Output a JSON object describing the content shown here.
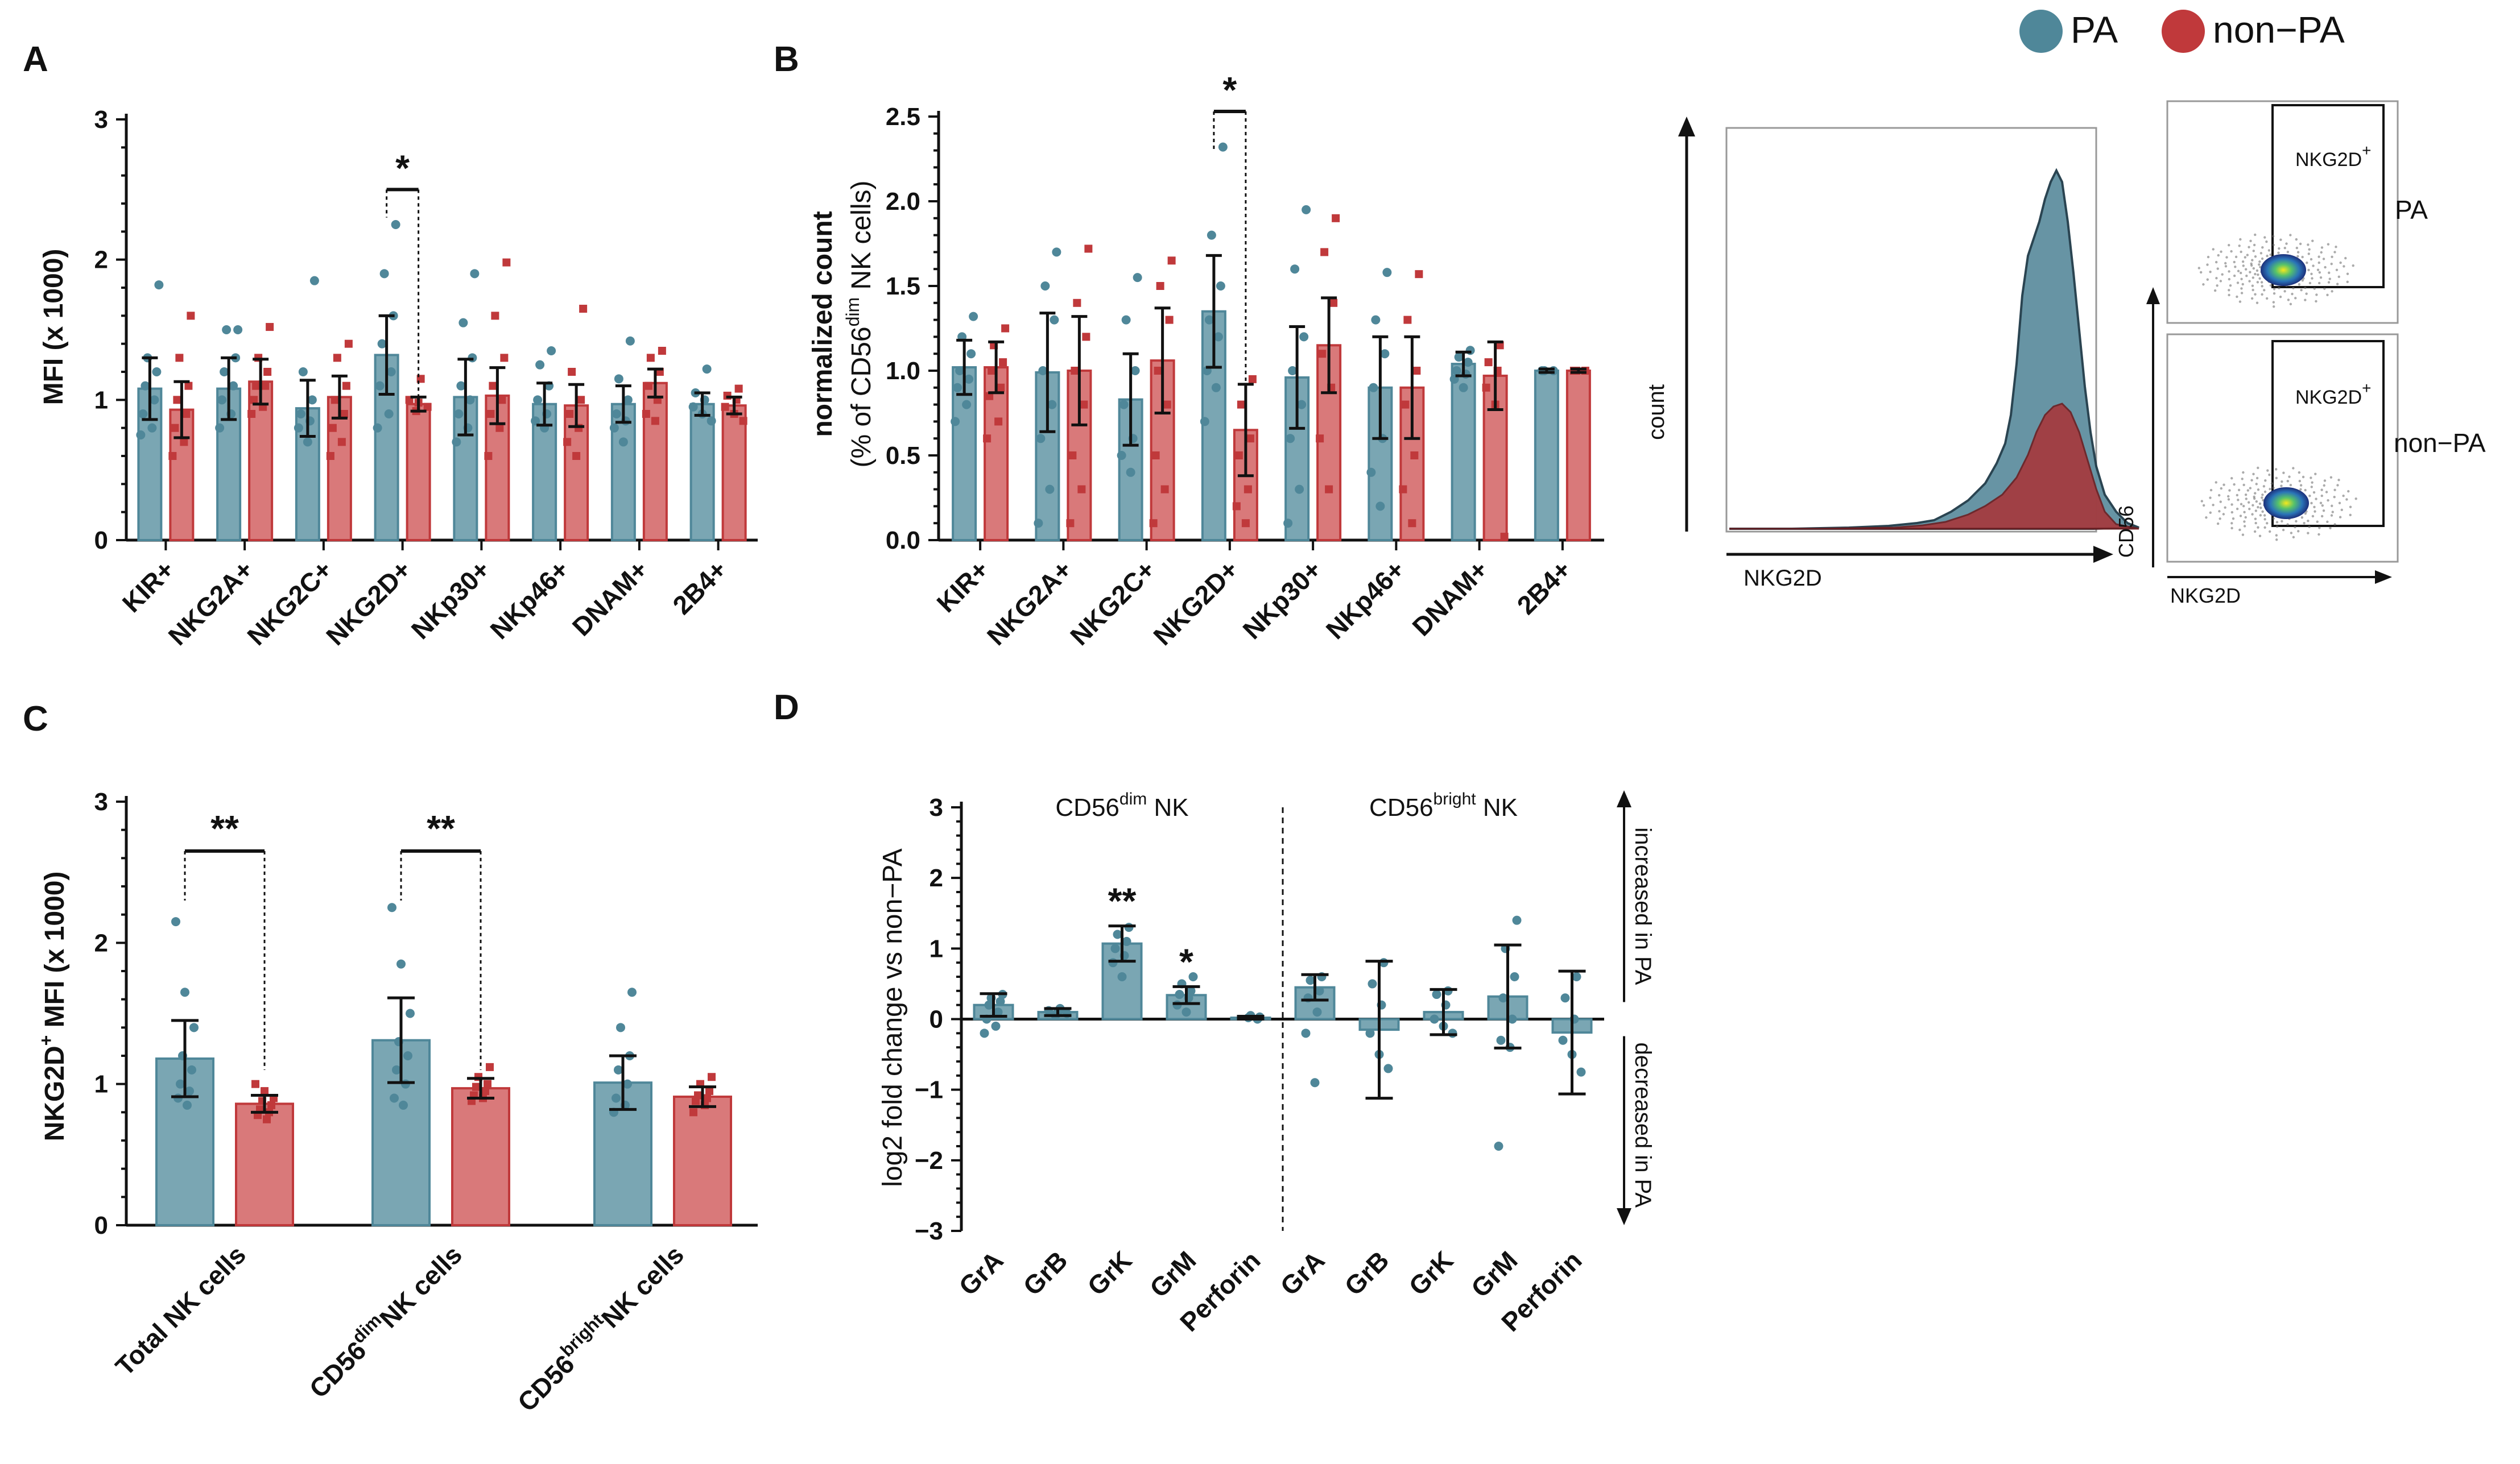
{
  "colors": {
    "pa": "#4f8799",
    "pa_fill": "#7aa6b3",
    "non_pa": "#c0393b",
    "non_pa_fill": "#d9797a"
  },
  "legend": {
    "pa": "PA",
    "non_pa": "non−PA"
  },
  "chart_data": [
    {
      "panel": "A",
      "type": "bar",
      "ylabel": "MFI (x 1000)",
      "ylim": [
        0,
        3
      ],
      "yticks": [
        "0",
        "1",
        "2",
        "3"
      ],
      "categories": [
        "KIR+",
        "NKG2A+",
        "NKG2C+",
        "NKG2D+",
        "NKp30+",
        "NKp46+",
        "DNAM+",
        "2B4+"
      ],
      "series": [
        {
          "name": "PA",
          "values": [
            1.08,
            1.08,
            0.94,
            1.32,
            1.02,
            0.97,
            0.97,
            0.97
          ],
          "err": [
            0.22,
            0.22,
            0.2,
            0.28,
            0.27,
            0.15,
            0.13,
            0.08
          ]
        },
        {
          "name": "non-PA",
          "values": [
            0.93,
            1.13,
            1.02,
            0.97,
            1.03,
            0.96,
            1.12,
            0.96
          ],
          "err": [
            0.2,
            0.16,
            0.15,
            0.05,
            0.2,
            0.15,
            0.1,
            0.06
          ]
        }
      ],
      "points": [
        [
          [
            1.82,
            1.3,
            1.2,
            1.1,
            1.0,
            0.9,
            0.8,
            0.75
          ],
          [
            1.6,
            1.3,
            1.1,
            1.0,
            0.9,
            0.8,
            0.7,
            0.6
          ]
        ],
        [
          [
            1.5,
            1.5,
            1.3,
            1.2,
            1.1,
            1.0,
            0.9,
            0.8
          ],
          [
            1.52,
            1.3,
            1.2,
            1.1,
            1.1,
            1.0,
            0.95,
            0.9
          ]
        ],
        [
          [
            1.85,
            1.2,
            1.0,
            0.9,
            0.85,
            0.8,
            0.7
          ],
          [
            1.4,
            1.3,
            1.1,
            1.0,
            0.9,
            0.8,
            0.7,
            0.6
          ]
        ],
        [
          [
            2.25,
            1.9,
            1.6,
            1.4,
            1.2,
            1.1,
            0.9,
            0.8
          ],
          [
            1.15,
            1.0,
            0.98,
            0.95,
            0.92
          ]
        ],
        [
          [
            1.9,
            1.55,
            1.3,
            1.1,
            1.0,
            0.9,
            0.8,
            0.7
          ],
          [
            1.98,
            1.6,
            1.3,
            1.1,
            1.0,
            0.9,
            0.8,
            0.6
          ]
        ],
        [
          [
            1.35,
            1.25,
            1.1,
            1.0,
            0.9,
            0.85,
            0.8
          ],
          [
            1.65,
            1.2,
            1.0,
            0.9,
            0.8,
            0.7,
            0.6
          ]
        ],
        [
          [
            1.42,
            1.15,
            1.0,
            0.9,
            0.85,
            0.8,
            0.7
          ],
          [
            1.35,
            1.3,
            1.2,
            1.1,
            1.0,
            0.9,
            0.85
          ]
        ],
        [
          [
            1.22,
            1.05,
            1.0,
            0.95,
            0.9,
            0.85
          ],
          [
            1.08,
            1.03,
            1.0,
            0.95,
            0.9,
            0.85
          ]
        ]
      ],
      "sig": {
        "label": "*",
        "category": "NKG2D+"
      }
    },
    {
      "panel": "B",
      "type": "bar",
      "ylabel_line1": "normalized count",
      "ylabel_line2_pre": "(% of CD56",
      "ylabel_line2_sup": "dim",
      "ylabel_line2_post": " NK cells)",
      "ylim": [
        0,
        2.5
      ],
      "yticks": [
        "0.0",
        "0.5",
        "1.0",
        "1.5",
        "2.0",
        "2.5"
      ],
      "categories": [
        "KIR+",
        "NKG2A+",
        "NKG2C+",
        "NKG2D+",
        "NKp30+",
        "NKp46+",
        "DNAM+",
        "2B4+"
      ],
      "series": [
        {
          "name": "PA",
          "values": [
            1.02,
            0.99,
            0.83,
            1.35,
            0.96,
            0.9,
            1.04,
            1.0
          ],
          "err": [
            0.16,
            0.35,
            0.27,
            0.33,
            0.3,
            0.3,
            0.07,
            0.01
          ]
        },
        {
          "name": "non-PA",
          "values": [
            1.02,
            1.0,
            1.06,
            0.65,
            1.15,
            0.9,
            0.97,
            1.0
          ],
          "err": [
            0.15,
            0.32,
            0.31,
            0.27,
            0.28,
            0.3,
            0.2,
            0.01
          ]
        }
      ],
      "points": [
        [
          [
            1.32,
            1.2,
            1.1,
            1.0,
            0.95,
            0.9,
            0.8,
            0.7
          ],
          [
            1.25,
            1.15,
            1.05,
            1.0,
            0.9,
            0.85,
            0.7,
            0.6
          ]
        ],
        [
          [
            1.7,
            1.5,
            1.3,
            1.0,
            0.8,
            0.6,
            0.3,
            0.1
          ],
          [
            1.72,
            1.4,
            1.2,
            1.0,
            0.8,
            0.5,
            0.3,
            0.1
          ]
        ],
        [
          [
            1.55,
            1.3,
            1.0,
            0.8,
            0.6,
            0.5,
            0.4
          ],
          [
            1.65,
            1.5,
            1.3,
            1.0,
            0.8,
            0.5,
            0.3,
            0.1
          ]
        ],
        [
          [
            2.32,
            1.8,
            1.5,
            1.3,
            1.2,
            1.0,
            0.9,
            0.7
          ],
          [
            0.95,
            0.8,
            0.6,
            0.5,
            0.3,
            0.2,
            0.1
          ]
        ],
        [
          [
            1.95,
            1.6,
            1.2,
            1.0,
            0.8,
            0.6,
            0.3,
            0.1
          ],
          [
            1.9,
            1.7,
            1.4,
            1.1,
            0.9,
            0.6,
            0.3
          ]
        ],
        [
          [
            1.58,
            1.3,
            1.1,
            0.9,
            0.6,
            0.4,
            0.2
          ],
          [
            1.57,
            1.3,
            1.0,
            0.8,
            0.5,
            0.3,
            0.1
          ]
        ],
        [
          [
            1.12,
            1.08,
            1.05,
            1.0,
            0.98,
            0.95,
            0.9
          ],
          [
            1.15,
            1.05,
            1.0,
            0.9,
            0.8,
            0.02
          ]
        ],
        [
          [
            1.0,
            1.0,
            1.0
          ],
          [
            1.0,
            1.0,
            1.0
          ]
        ]
      ],
      "sig": {
        "label": "*",
        "category": "NKG2D+"
      }
    },
    {
      "panel": "C",
      "type": "bar",
      "ylabel_pre": "NKG2D",
      "ylabel_sup": "+",
      "ylabel_post": " MFI (x 1000)",
      "ylim": [
        0,
        3
      ],
      "yticks": [
        "0",
        "1",
        "2",
        "3"
      ],
      "categories": [
        {
          "pre": "Total NK cells",
          "sup": "",
          "post": ""
        },
        {
          "pre": "CD56",
          "sup": "dim",
          "post": "NK cells"
        },
        {
          "pre": "CD56",
          "sup": "bright",
          "post": "NK cells"
        }
      ],
      "series": [
        {
          "name": "PA",
          "values": [
            1.18,
            1.31,
            1.01
          ],
          "err": [
            0.27,
            0.3,
            0.19
          ]
        },
        {
          "name": "non-PA",
          "values": [
            0.86,
            0.97,
            0.91
          ],
          "err": [
            0.06,
            0.07,
            0.07
          ]
        }
      ],
      "points": [
        [
          [
            2.15,
            1.65,
            1.4,
            1.2,
            1.1,
            1.0,
            0.95,
            0.9,
            0.85
          ],
          [
            1.0,
            0.95,
            0.9,
            0.88,
            0.85,
            0.82,
            0.8,
            0.78,
            0.75
          ]
        ],
        [
          [
            2.25,
            1.85,
            1.5,
            1.3,
            1.2,
            1.1,
            1.0,
            0.9,
            0.85
          ],
          [
            1.12,
            1.05,
            1.0,
            0.98,
            0.95,
            0.92,
            0.9,
            0.88
          ]
        ],
        [
          [
            1.65,
            1.4,
            1.2,
            1.1,
            1.0,
            0.9,
            0.85,
            0.8
          ],
          [
            1.05,
            1.0,
            0.95,
            0.92,
            0.9,
            0.88,
            0.85,
            0.8
          ]
        ]
      ],
      "sig": [
        {
          "label": "**",
          "group": 0
        },
        {
          "label": "**",
          "group": 1
        }
      ]
    },
    {
      "panel": "D",
      "type": "bar",
      "ylabel": "log2 fold change vs non−PA",
      "ylim": [
        -3,
        3
      ],
      "yticks": [
        "−3",
        "−2",
        "−1",
        "0",
        "1",
        "2",
        "3"
      ],
      "groups": [
        {
          "pre": "CD56",
          "sup": "dim",
          "post": " NK"
        },
        {
          "pre": "CD56",
          "sup": "bright",
          "post": " NK"
        }
      ],
      "categories": [
        "GrA",
        "GrB",
        "GrK",
        "GrM",
        "Perforin",
        "GrA",
        "GrB",
        "GrK",
        "GrM",
        "Perforin"
      ],
      "values": [
        0.2,
        0.1,
        1.07,
        0.34,
        0.02,
        0.45,
        -0.15,
        0.1,
        0.32,
        -0.19
      ],
      "err": [
        0.16,
        0.05,
        0.25,
        0.12,
        0.02,
        0.18,
        0.97,
        0.32,
        0.73,
        0.87
      ],
      "points": [
        [
          0.35,
          0.3,
          0.25,
          0.2,
          0.1,
          0.0,
          -0.1,
          -0.2
        ],
        [
          0.15,
          0.12,
          0.1,
          0.08,
          0.05
        ],
        [
          1.3,
          1.2,
          1.1,
          1.0,
          0.9,
          0.8,
          0.6
        ],
        [
          0.6,
          0.5,
          0.4,
          0.35,
          0.3,
          0.2,
          0.1
        ],
        [
          0.05,
          0.03,
          0.02,
          0.0
        ],
        [
          0.6,
          0.55,
          0.4,
          0.3,
          0.1,
          -0.2,
          -0.9
        ],
        [
          0.8,
          0.5,
          0.2,
          -0.2,
          -0.5,
          -0.7
        ],
        [
          0.4,
          0.35,
          0.2,
          0.0,
          -0.1,
          -0.2
        ],
        [
          1.4,
          1.0,
          0.6,
          0.3,
          0.0,
          -0.3,
          -0.4,
          -1.8
        ],
        [
          0.6,
          0.3,
          0.0,
          -0.3,
          -0.5,
          -0.75
        ]
      ],
      "sig": [
        {
          "label": "**",
          "index": 2
        },
        {
          "label": "*",
          "index": 3
        }
      ],
      "side_up": "increased in PA",
      "side_down": "decreased in PA"
    }
  ],
  "flow": {
    "histogram": {
      "ylabel": "count",
      "xlabel": "NKG2D"
    },
    "scatter": {
      "ylabel": "CD56",
      "xlabel": "NKG2D",
      "gate_label_pre": "NKG2D",
      "gate_label_sup": "+",
      "top_label": "PA",
      "bottom_label": "non−PA"
    }
  }
}
